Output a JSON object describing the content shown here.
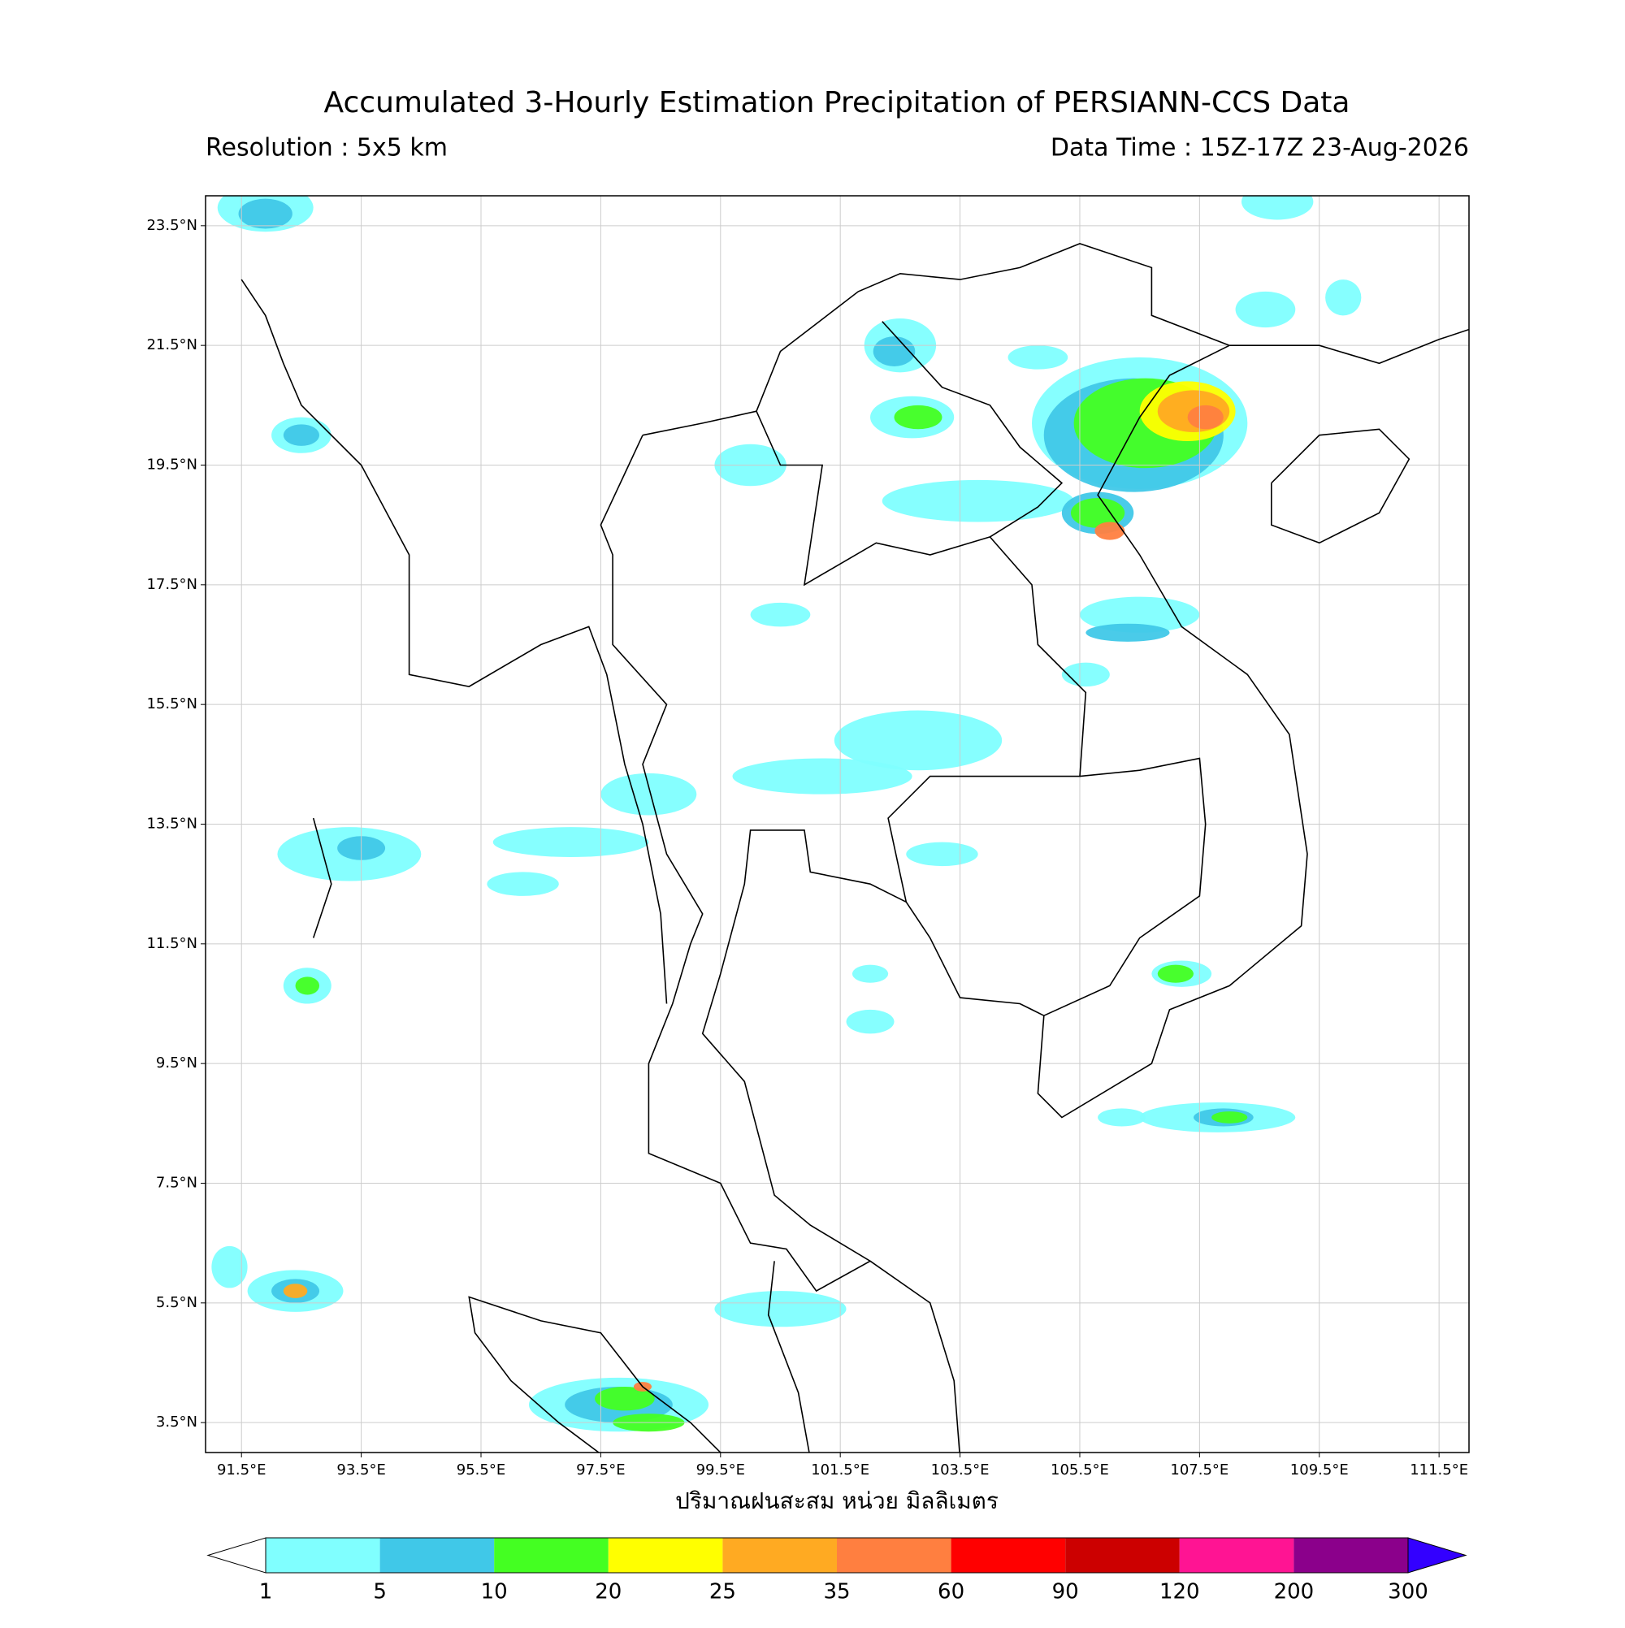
{
  "header": {
    "title": "Accumulated 3-Hourly Estimation Precipitation of PERSIANN-CCS Data",
    "resolution": "Resolution : 5x5 km",
    "data_time": "Data Time : 15Z-17Z 23-Aug-2026"
  },
  "map": {
    "lonlim": [
      90.9,
      112.0
    ],
    "latlim": [
      3.0,
      24.0
    ],
    "grid": true,
    "lon_ticks": [
      {
        "value": 91.5,
        "label": "91.5°E"
      },
      {
        "value": 93.5,
        "label": "93.5°E"
      },
      {
        "value": 95.5,
        "label": "95.5°E"
      },
      {
        "value": 97.5,
        "label": "97.5°E"
      },
      {
        "value": 99.5,
        "label": "99.5°E"
      },
      {
        "value": 101.5,
        "label": "101.5°E"
      },
      {
        "value": 103.5,
        "label": "103.5°E"
      },
      {
        "value": 105.5,
        "label": "105.5°E"
      },
      {
        "value": 107.5,
        "label": "107.5°E"
      },
      {
        "value": 109.5,
        "label": "109.5°E"
      },
      {
        "value": 111.5,
        "label": "111.5°E"
      }
    ],
    "lat_ticks": [
      {
        "value": 23.5,
        "label": "23.5°N"
      },
      {
        "value": 21.5,
        "label": "21.5°N"
      },
      {
        "value": 19.5,
        "label": "19.5°N"
      },
      {
        "value": 17.5,
        "label": "17.5°N"
      },
      {
        "value": 15.5,
        "label": "15.5°N"
      },
      {
        "value": 13.5,
        "label": "13.5°N"
      },
      {
        "value": 11.5,
        "label": "11.5°N"
      },
      {
        "value": 9.5,
        "label": "9.5°N"
      },
      {
        "value": 7.5,
        "label": "7.5°N"
      },
      {
        "value": 5.5,
        "label": "5.5°N"
      },
      {
        "value": 3.5,
        "label": "3.5°N"
      }
    ],
    "xlabel": "ปริมาณฝนสะสม หน่วย มิลลิเมตร"
  },
  "colorbar": {
    "levels": [
      1,
      5,
      10,
      20,
      25,
      35,
      60,
      90,
      120,
      200,
      300
    ],
    "colors": [
      "#80ffff",
      "#40c8e8",
      "#44ff22",
      "#ffff00",
      "#ffaa22",
      "#ff7f40",
      "#ff0000",
      "#cc0000",
      "#ff1493",
      "#8b008b"
    ],
    "under_color": "#ffffff",
    "over_color": "#3300ff"
  }
}
